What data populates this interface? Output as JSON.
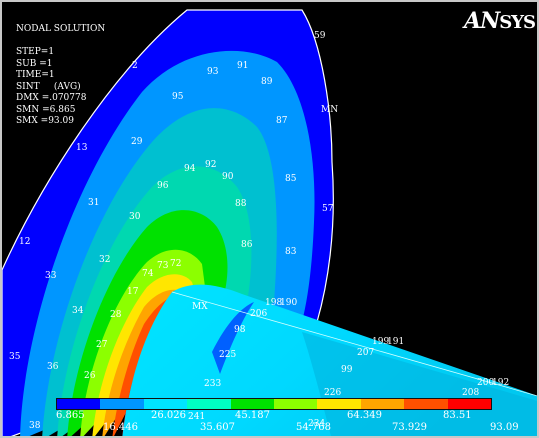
{
  "info": {
    "lines": [
      "NODAL SOLUTION",
      "",
      "STEP=1",
      "SUB =1",
      "TIME=1",
      "SINT     (AVG)",
      "DMX =.070778",
      "SMN =6.865",
      "SMX =93.09"
    ]
  },
  "logo": {
    "prefix": "AN",
    "suffix": "SYS"
  },
  "legend": {
    "colors": [
      "#0000ff",
      "#0096ff",
      "#00e5ff",
      "#00ffc3",
      "#00e100",
      "#8cff00",
      "#ffe600",
      "#ffa500",
      "#ff5000",
      "#ff0000"
    ],
    "low_labels": [
      "6.865",
      "26.026",
      "45.187",
      "64.349",
      "83.51"
    ],
    "high_labels": [
      "16.446",
      "35.607",
      "54.768",
      "73.929",
      "93.09"
    ]
  },
  "nodes": {
    "n1": "59",
    "n2": "2",
    "n3": "93",
    "n4": "91",
    "n5": "89",
    "n6": "95",
    "n7": "87",
    "n8": "13",
    "n9": "29",
    "n10": "94",
    "n11": "92",
    "n12": "96",
    "n13": "90",
    "n14": "85",
    "n15": "31",
    "n16": "88",
    "n17": "57",
    "n18": "30",
    "n19": "12",
    "n20": "86",
    "n21": "32",
    "n22": "83",
    "n23": "73",
    "n24": "72",
    "n25": "33",
    "n26": "74",
    "n27": "17",
    "n28": "MX",
    "n29": "198",
    "n30": "190",
    "n31": "34",
    "n32": "28",
    "n33": "206",
    "n34": "98",
    "n35": "27",
    "n36": "199",
    "n37": "191",
    "n38": "207",
    "n39": "225",
    "n40": "35",
    "n41": "36",
    "n42": "99",
    "n43": "26",
    "n44": "233",
    "n45": "226",
    "n46": "200",
    "n47": "192",
    "n48": "208",
    "n49": "241",
    "n50": "234",
    "n51": "38",
    "n52": "MN"
  }
}
